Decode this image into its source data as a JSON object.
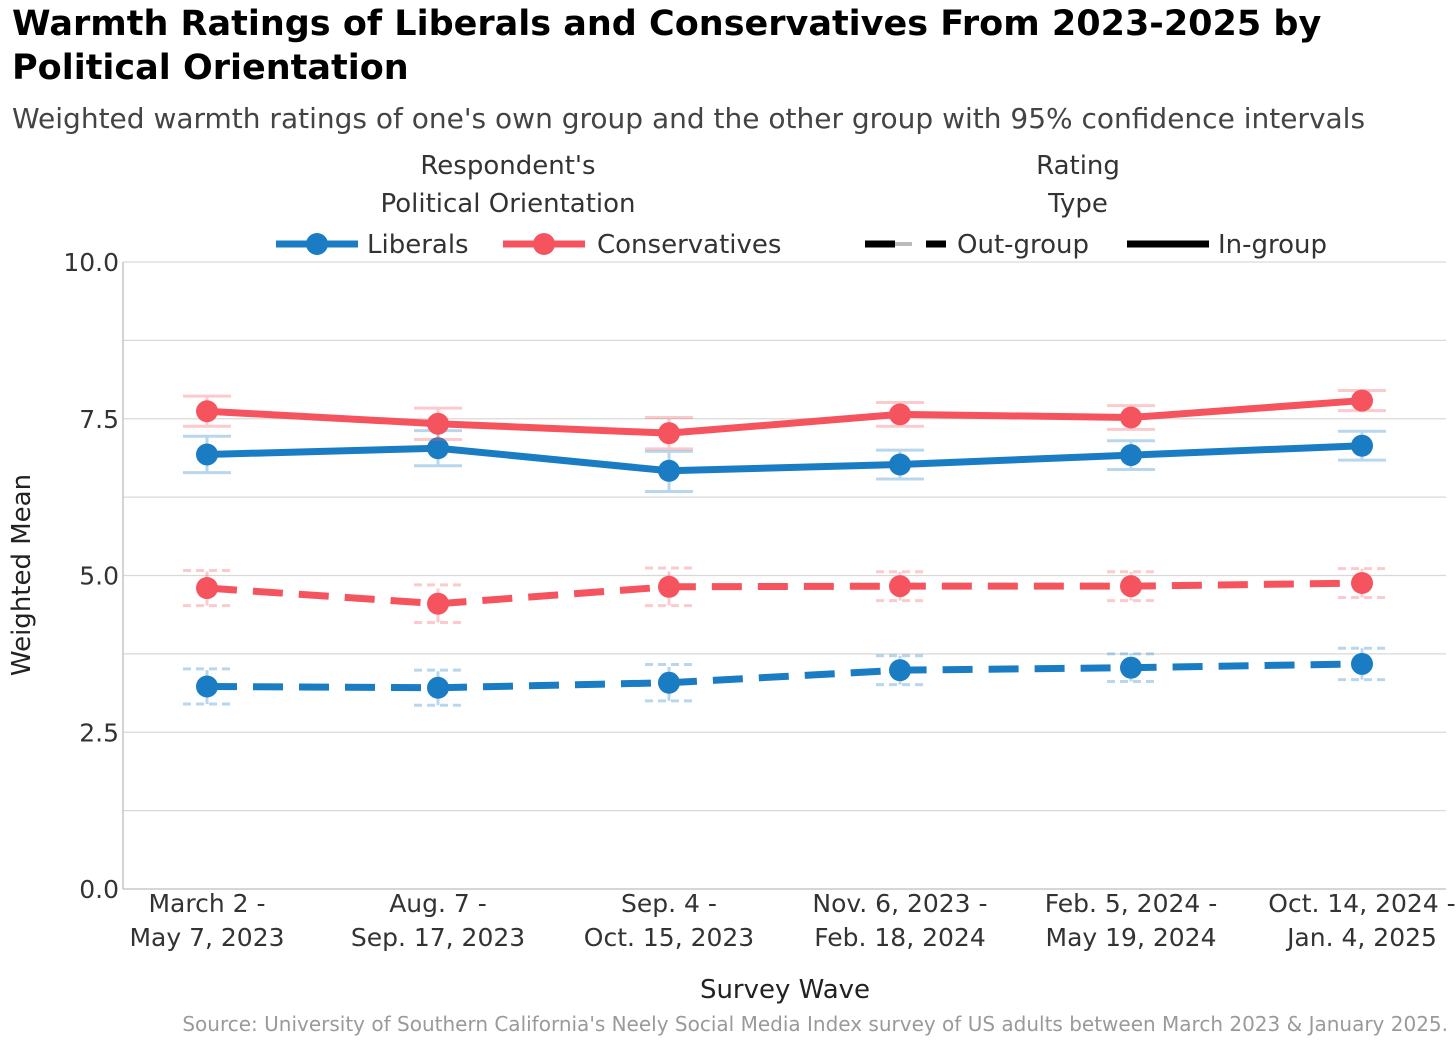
{
  "chart_data": {
    "type": "line",
    "title": "Warmth Ratings of Liberals and Conservatives From 2023-2025 by Political Orientation",
    "subtitle": "Weighted warmth ratings of one's own group and the other group with 95% confidence intervals",
    "source": "Source: University of Southern California's Neely Social Media Index survey of US adults between March 2023 & January 2025.",
    "xlabel": "Survey Wave",
    "ylabel": "Weighted Mean",
    "ylim": [
      0,
      10
    ],
    "yticks": [
      "0.0",
      "2.5",
      "5.0",
      "7.5",
      "10.0"
    ],
    "categories": [
      [
        "March 2 -",
        "May 7, 2023"
      ],
      [
        "Aug. 7 -",
        "Sep. 17, 2023"
      ],
      [
        "Sep. 4 -",
        "Oct. 15, 2023"
      ],
      [
        "Nov. 6, 2023 -",
        "Feb. 18, 2024"
      ],
      [
        "Feb. 5, 2024 -",
        "May 19, 2024"
      ],
      [
        "Oct. 14, 2024 -",
        "Jan. 4, 2025"
      ]
    ],
    "grid": true,
    "legend": {
      "placement": "top",
      "group1_title": [
        "Respondent's",
        "Political Orientation"
      ],
      "group1_items": [
        "Liberals",
        "Conservatives"
      ],
      "group2_title": [
        "Rating",
        "Type"
      ],
      "group2_items": [
        "Out-group",
        "In-group"
      ]
    },
    "colors": {
      "Liberals": "#1a7dc3",
      "Conservatives": "#f5545e"
    },
    "series": [
      {
        "orientation": "Conservatives",
        "rating": "In-group",
        "values": [
          7.62,
          7.42,
          7.27,
          7.57,
          7.52,
          7.79
        ],
        "ci_low": [
          7.38,
          7.17,
          7.02,
          7.38,
          7.33,
          7.63
        ],
        "ci_high": [
          7.86,
          7.67,
          7.52,
          7.76,
          7.71,
          7.95
        ]
      },
      {
        "orientation": "Liberals",
        "rating": "In-group",
        "values": [
          6.93,
          7.03,
          6.67,
          6.77,
          6.92,
          7.07
        ],
        "ci_low": [
          6.64,
          6.75,
          6.34,
          6.54,
          6.69,
          6.84
        ],
        "ci_high": [
          7.22,
          7.31,
          6.98,
          7.0,
          7.15,
          7.3
        ]
      },
      {
        "orientation": "Conservatives",
        "rating": "Out-group",
        "values": [
          4.8,
          4.55,
          4.82,
          4.83,
          4.83,
          4.88
        ],
        "ci_low": [
          4.52,
          4.25,
          4.52,
          4.6,
          4.6,
          4.65
        ],
        "ci_high": [
          5.08,
          4.85,
          5.12,
          5.06,
          5.06,
          5.11
        ]
      },
      {
        "orientation": "Liberals",
        "rating": "Out-group",
        "values": [
          3.23,
          3.21,
          3.29,
          3.49,
          3.53,
          3.59
        ],
        "ci_low": [
          2.95,
          2.93,
          3.0,
          3.26,
          3.31,
          3.34
        ],
        "ci_high": [
          3.51,
          3.49,
          3.58,
          3.72,
          3.75,
          3.84
        ]
      }
    ]
  }
}
